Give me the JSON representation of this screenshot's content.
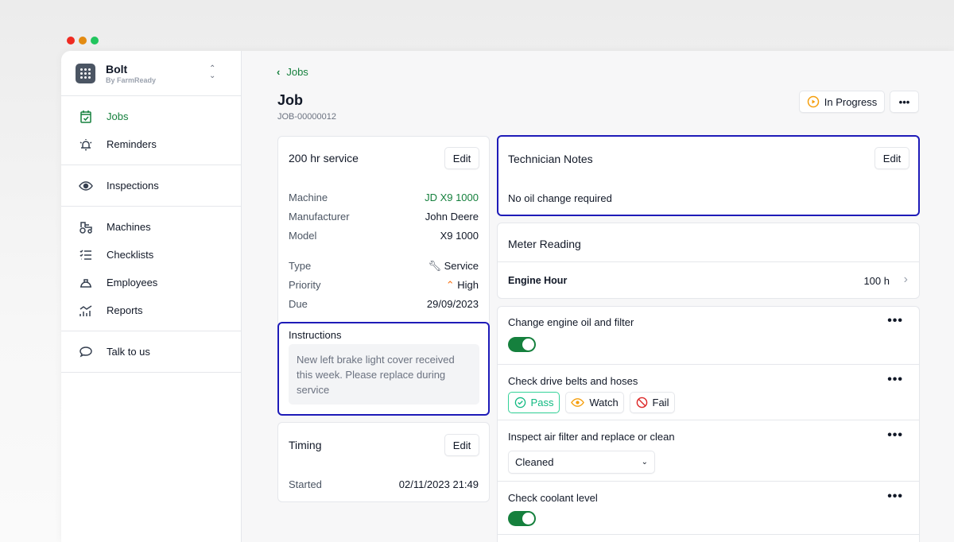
{
  "window_controls": {
    "colors": [
      "#ef4444",
      "#f59e0b",
      "#22c55e"
    ]
  },
  "brand": {
    "name": "Bolt",
    "subtitle": "By FarmReady"
  },
  "sidebar": {
    "groups": [
      [
        {
          "label": "Jobs",
          "icon": "calendar-check-icon",
          "active": true
        },
        {
          "label": "Reminders",
          "icon": "bell-icon"
        }
      ],
      [
        {
          "label": "Inspections",
          "icon": "eye-icon"
        }
      ],
      [
        {
          "label": "Machines",
          "icon": "tractor-icon"
        },
        {
          "label": "Checklists",
          "icon": "checklist-icon"
        },
        {
          "label": "Employees",
          "icon": "hard-hat-icon"
        },
        {
          "label": "Reports",
          "icon": "chart-icon"
        }
      ],
      [
        {
          "label": "Talk to us",
          "icon": "chat-icon"
        }
      ]
    ]
  },
  "header": {
    "back": "Jobs",
    "title": "Job",
    "job_id": "JOB-00000012",
    "status": "In Progress",
    "more": "•••"
  },
  "service": {
    "title": "200 hr service",
    "edit": "Edit",
    "fields": [
      {
        "label": "Machine",
        "value": "JD X9 1000"
      },
      {
        "label": "Manufacturer",
        "value": "John Deere"
      },
      {
        "label": "Model",
        "value": "X9 1000"
      }
    ],
    "fields2": [
      {
        "label": "Type",
        "value": "Service"
      },
      {
        "label": "Priority",
        "value": "High"
      },
      {
        "label": "Due",
        "value": "29/09/2023"
      }
    ]
  },
  "instructions": {
    "label": "Instructions",
    "text": "New left brake light cover received this week. Please replace during service"
  },
  "timing": {
    "title": "Timing",
    "edit": "Edit",
    "label": "Started",
    "value": "02/11/2023 21:49"
  },
  "notes": {
    "title": "Technician Notes",
    "edit": "Edit",
    "text": "No oil change required"
  },
  "meter": {
    "title": "Meter Reading",
    "label": "Engine Hour",
    "value": "100 h"
  },
  "checklist": [
    {
      "label": "Change engine oil and filter",
      "type": "toggle",
      "on": true
    },
    {
      "label": "Check drive belts and hoses",
      "type": "options",
      "options": [
        "Pass",
        "Watch",
        "Fail"
      ],
      "selected": "Pass"
    },
    {
      "label": "Inspect air filter and replace or clean",
      "type": "select",
      "value": "Cleaned"
    },
    {
      "label": "Check coolant level",
      "type": "toggle",
      "on": true
    }
  ],
  "more": "•••",
  "colors": {
    "accent": "#15803d",
    "focus": "#1e1bb8",
    "warning": "#f59e0b",
    "danger": "#dc2626",
    "pass": "#10b981"
  }
}
